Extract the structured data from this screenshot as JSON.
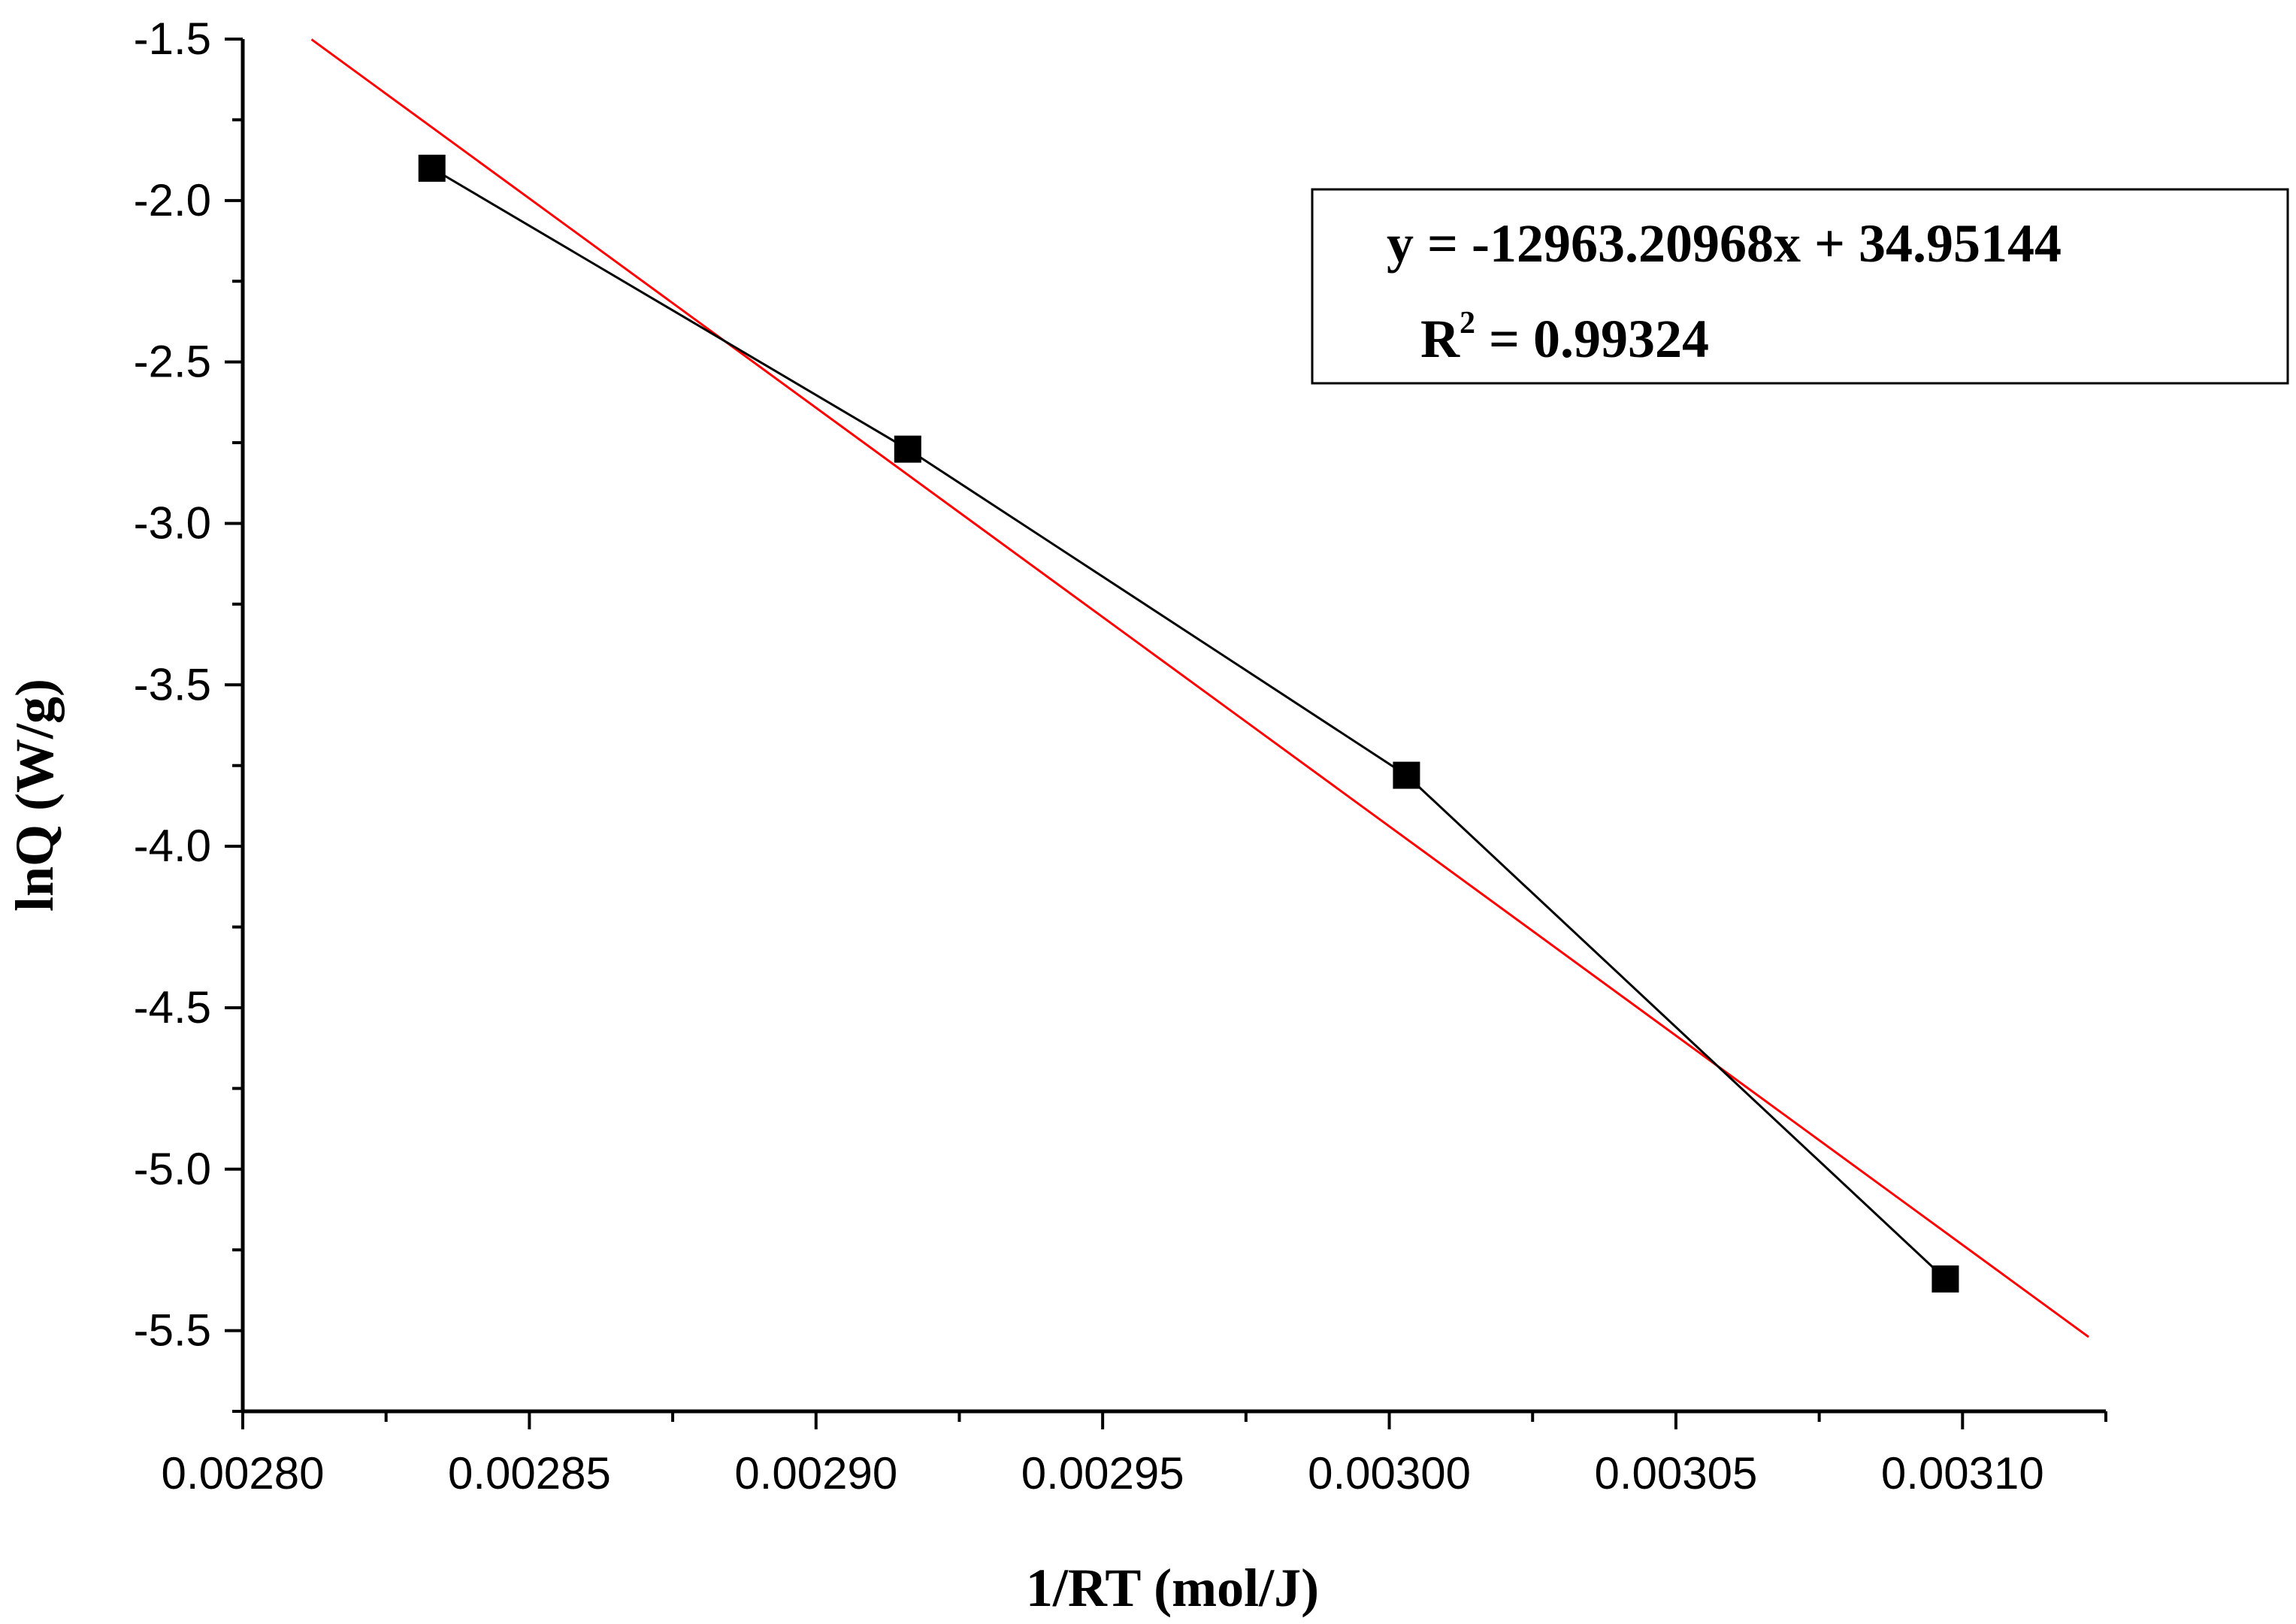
{
  "chart_data": {
    "type": "scatter",
    "xlabel": "1/RT (mol/J)",
    "ylabel": "lnQ (W/g)",
    "xlim": [
      0.0028,
      0.003125
    ],
    "ylim": [
      -5.75,
      -1.5
    ],
    "x_ticks": [
      "0.00280",
      "0.00285",
      "0.00290",
      "0.00295",
      "0.00300",
      "0.00305",
      "0.00310"
    ],
    "x_tick_values": [
      0.0028,
      0.00285,
      0.0029,
      0.00295,
      0.003,
      0.00305,
      0.0031
    ],
    "y_ticks": [
      "-1.5",
      "-2.0",
      "-2.5",
      "-3.0",
      "-3.5",
      "-4.0",
      "-4.5",
      "-5.0",
      "-5.5"
    ],
    "y_tick_values": [
      -1.5,
      -2.0,
      -2.5,
      -3.0,
      -3.5,
      -4.0,
      -4.5,
      -5.0,
      -5.5
    ],
    "grid": false,
    "series": [
      {
        "x": [
          0.002833,
          0.002916,
          0.003003,
          0.003097
        ],
        "y": [
          -1.9,
          -2.77,
          -3.78,
          -5.34
        ],
        "color": "#000000",
        "marker": "square",
        "connected": true
      }
    ],
    "fit_line": {
      "x_range": [
        0.002812,
        0.003122
      ],
      "slope": -12963.20968,
      "intercept": 34.95144,
      "color": "#ff0000"
    },
    "annotation": {
      "equation": "y = -12963.20968x + 34.95144",
      "r2_prefix": "R",
      "r2_sup": "2",
      "r2_value": " = 0.99324",
      "placement": "top-right"
    }
  }
}
